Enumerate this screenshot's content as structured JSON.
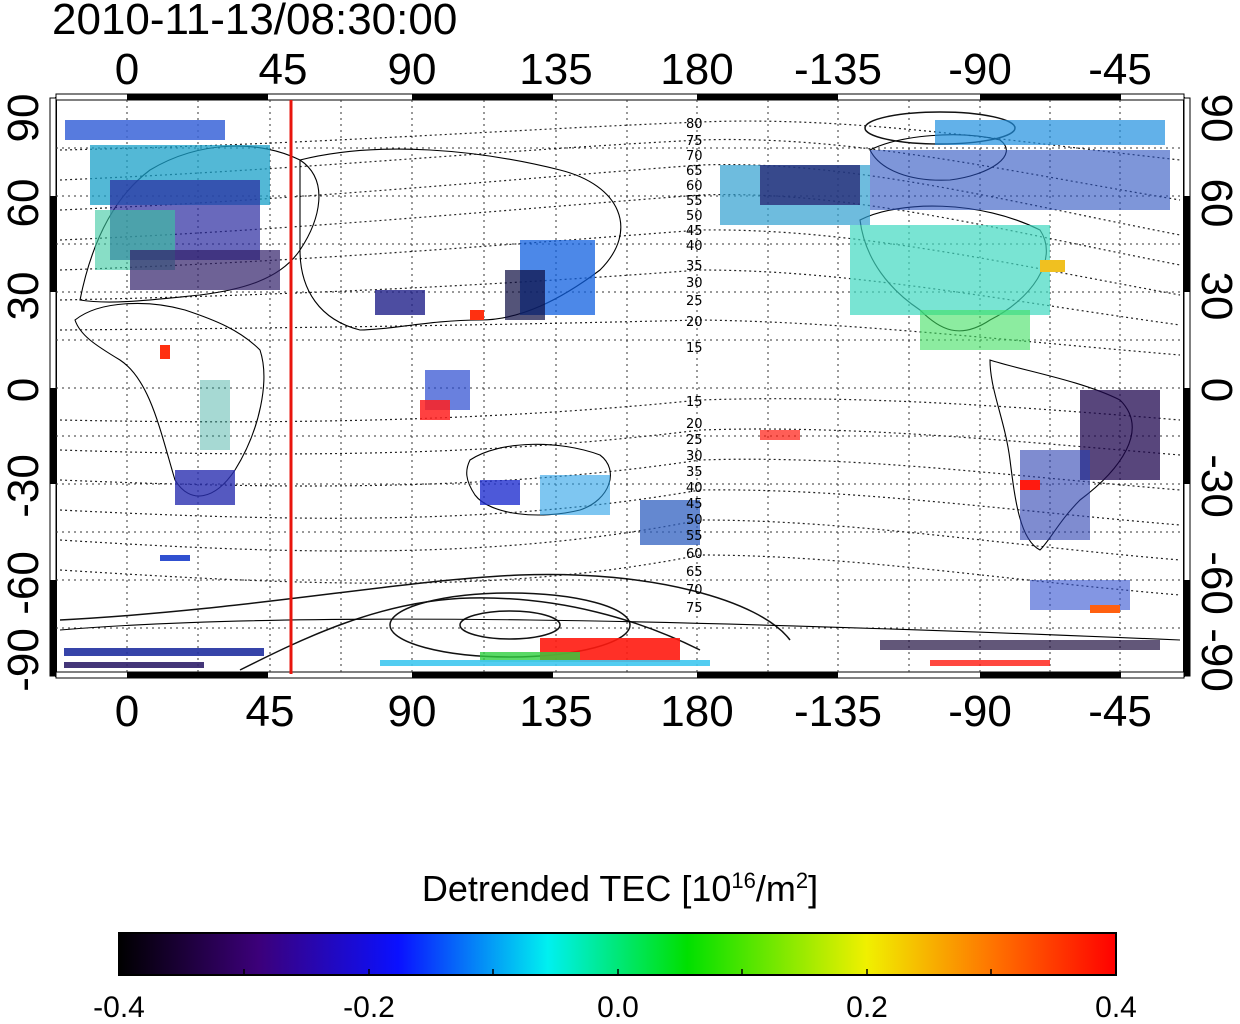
{
  "timestamp": "2010-11-13/08:30:00",
  "map": {
    "x_ticks_top": [
      "0",
      "45",
      "90",
      "135",
      "180",
      "-135",
      "-90",
      "-45"
    ],
    "x_ticks_bottom": [
      "0",
      "45",
      "90",
      "135",
      "180",
      "-135",
      "-90",
      "-45"
    ],
    "y_ticks_left": [
      "90",
      "60",
      "30",
      "0",
      "-30",
      "-60",
      "-90"
    ],
    "y_ticks_right": [
      "90",
      "60",
      "30",
      "0",
      "-30",
      "-60",
      "-90"
    ],
    "marker_longitude": 52,
    "marker_color": "#e8140c",
    "contour_labels_north": [
      "80",
      "75",
      "70",
      "65",
      "60",
      "55",
      "50",
      "45",
      "40",
      "35",
      "30",
      "25",
      "20",
      "15"
    ],
    "contour_labels_south": [
      "15",
      "20",
      "25",
      "30",
      "35",
      "40",
      "45",
      "50",
      "55",
      "60",
      "65",
      "70",
      "75"
    ]
  },
  "colorbar": {
    "title_main": "Detrended TEC  [10",
    "title_exp1": "16",
    "title_mid": "/m",
    "title_exp2": "2",
    "title_end": "]",
    "ticks": [
      "-0.4",
      "-0.2",
      "0.0",
      "0.2",
      "0.4"
    ],
    "range": [
      -0.4,
      0.4
    ],
    "colors": [
      "#000000",
      "#3c007a",
      "#0a10ff",
      "#00f0f0",
      "#00e000",
      "#f0f000",
      "#ff7000",
      "#ff0000"
    ]
  }
}
